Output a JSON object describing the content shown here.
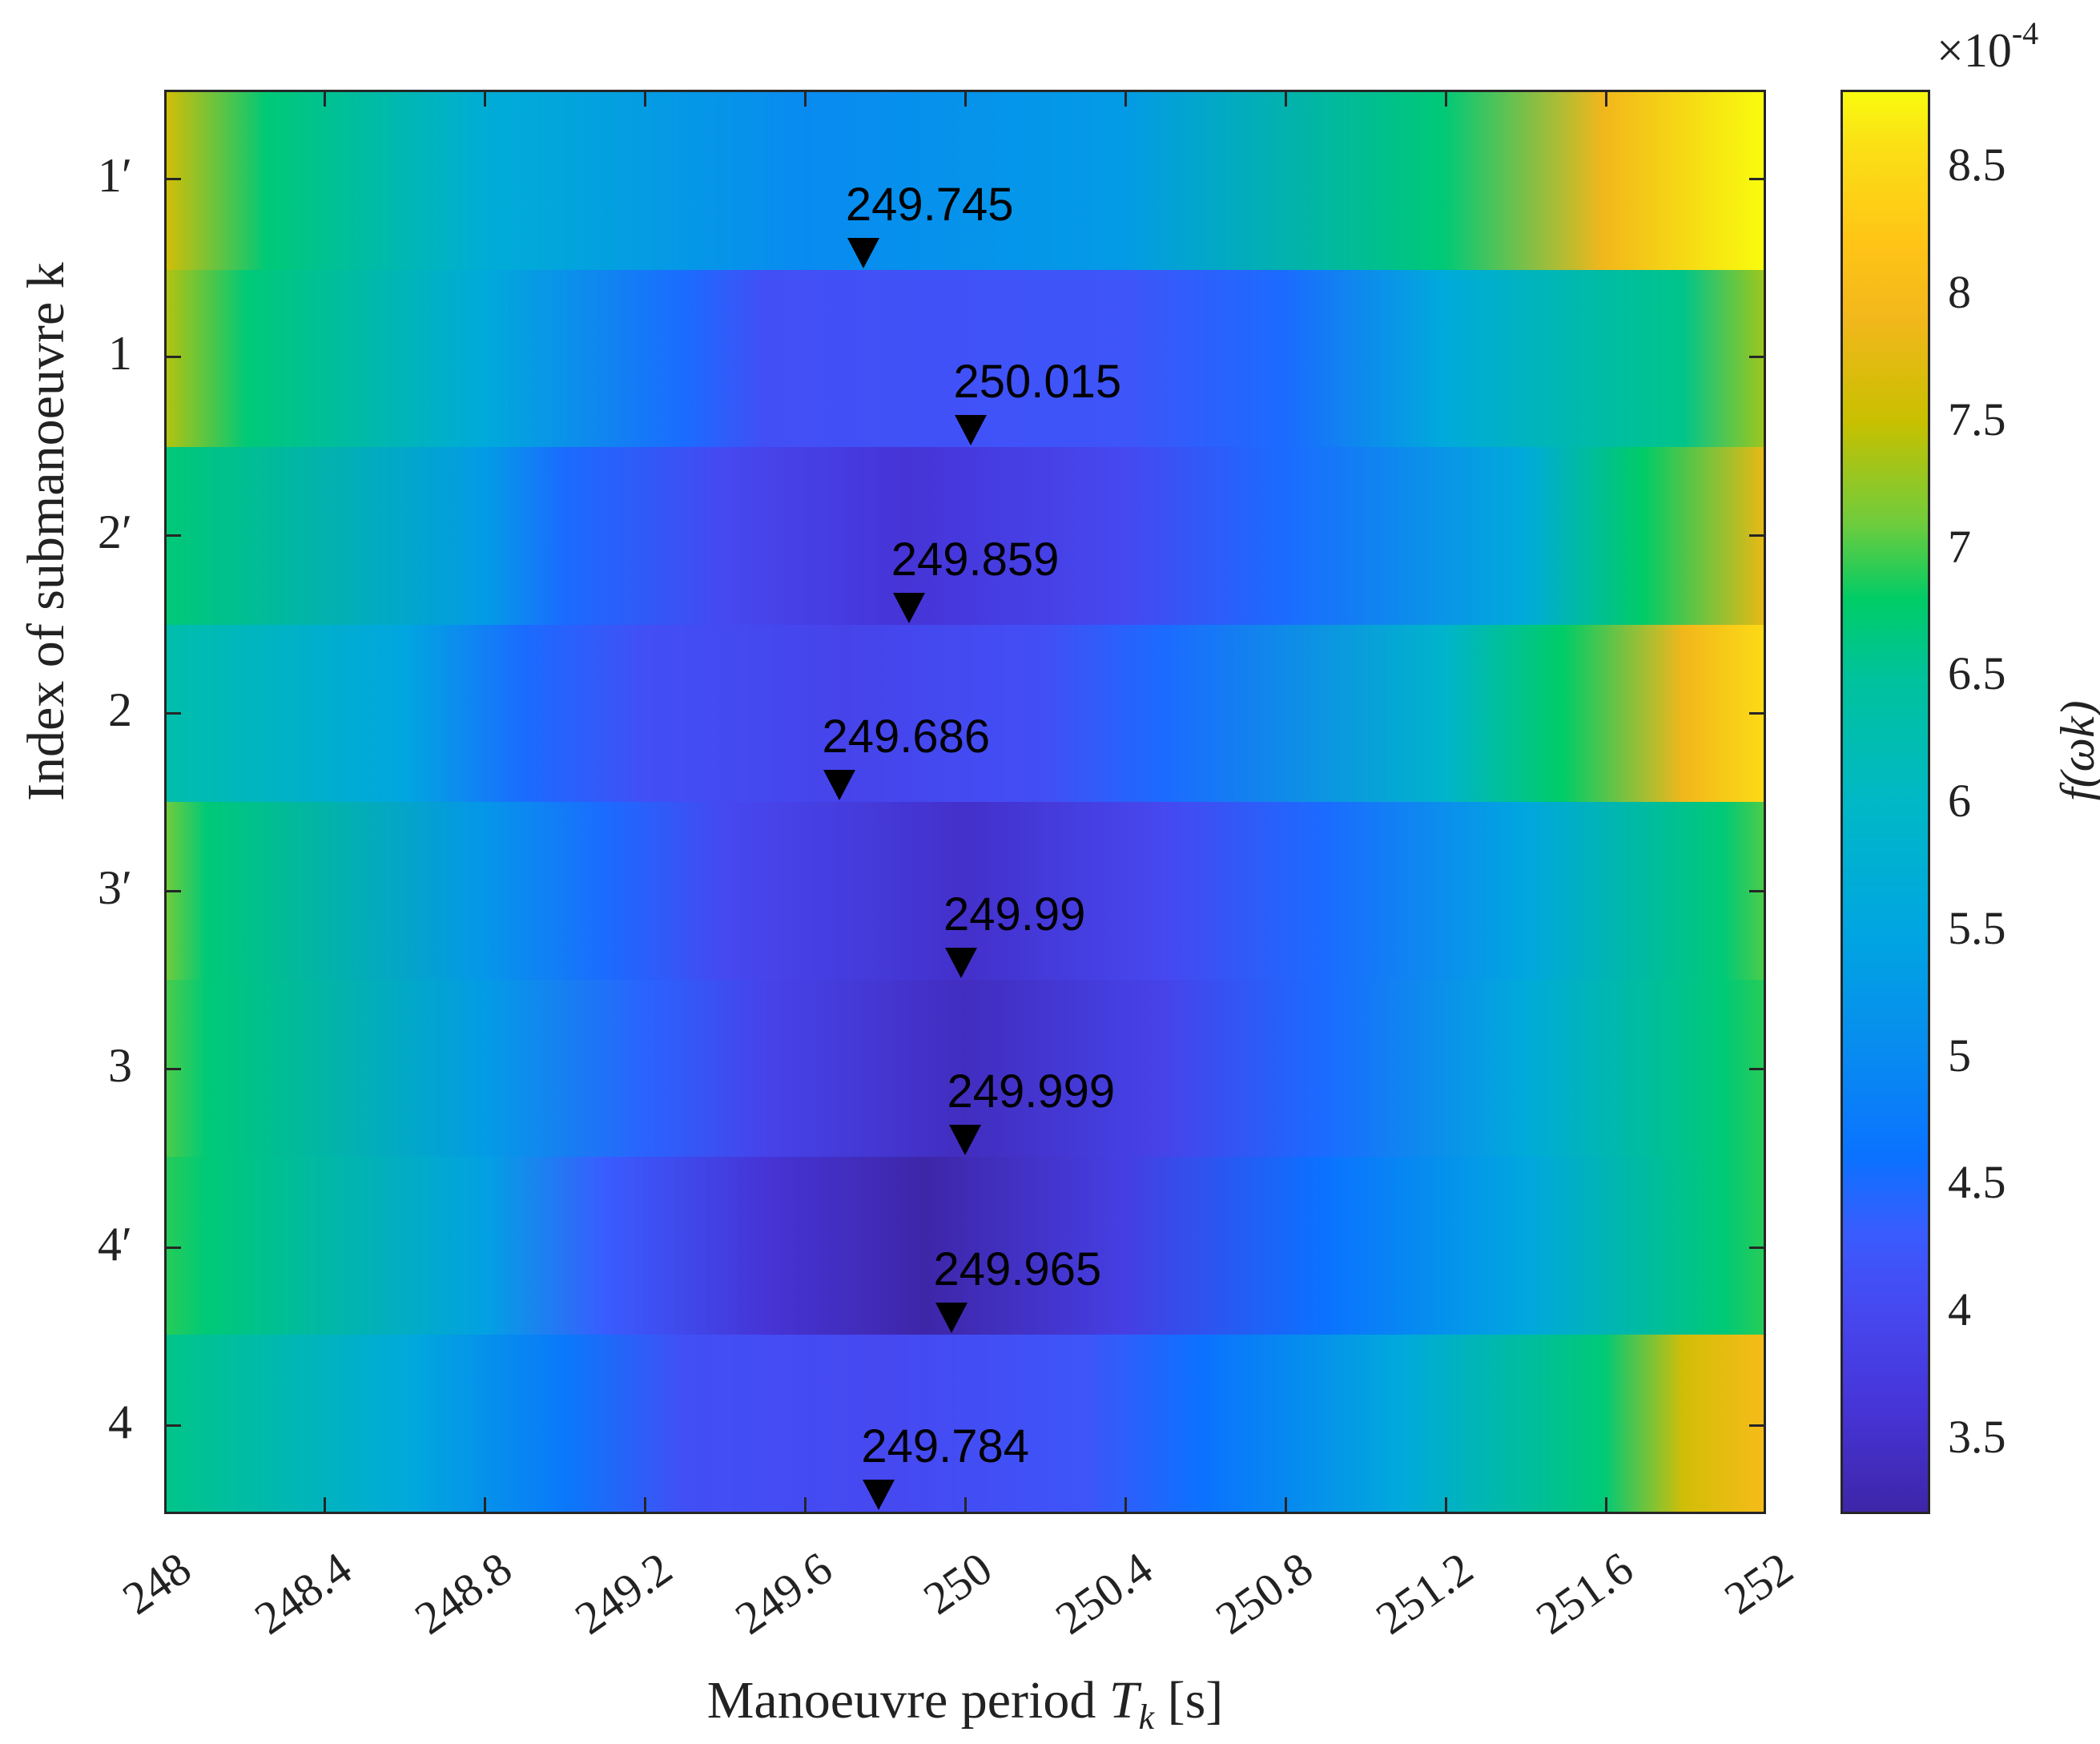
{
  "chart_data": {
    "type": "heatmap",
    "title": "",
    "xlabel": "Manoeuvre period T_k [s]",
    "ylabel": "Index of submanoeuvre k",
    "colorbar_label": "f(ω_k)",
    "colorbar_multiplier": "×10^-4",
    "colorbar_range": [
      3.2,
      8.8
    ],
    "colorbar_ticks": [
      3.5,
      4,
      4.5,
      5,
      5.5,
      6,
      6.5,
      7,
      7.5,
      8,
      8.5
    ],
    "colormap": "parula",
    "xlim": [
      248,
      252
    ],
    "x_ticks": [
      248,
      248.4,
      248.8,
      249.2,
      249.6,
      250,
      250.4,
      250.8,
      251.2,
      251.6,
      252
    ],
    "y_categories": [
      "1′",
      "1",
      "2′",
      "2",
      "3′",
      "3",
      "4′",
      "4"
    ],
    "grid": false,
    "rows": [
      {
        "k": "1′",
        "optimum_T": 249.745,
        "min_value": 4.9,
        "stops": [
          [
            248,
            7.6
          ],
          [
            248.25,
            6.7
          ],
          [
            248.8,
            5.7
          ],
          [
            249.6,
            5.0
          ],
          [
            250.4,
            5.3
          ],
          [
            251.2,
            6.7
          ],
          [
            251.6,
            7.9
          ],
          [
            252,
            8.8
          ]
        ]
      },
      {
        "k": "1",
        "optimum_T": 250.015,
        "min_value": 4.1,
        "stops": [
          [
            248,
            7.4
          ],
          [
            248.2,
            6.7
          ],
          [
            248.8,
            5.6
          ],
          [
            249.3,
            4.5
          ],
          [
            249.5,
            4.1
          ],
          [
            250.4,
            4.2
          ],
          [
            250.8,
            4.5
          ],
          [
            251.2,
            5.6
          ],
          [
            251.8,
            6.6
          ],
          [
            252,
            7.3
          ]
        ]
      },
      {
        "k": "2′",
        "optimum_T": 249.859,
        "min_value": 3.6,
        "stops": [
          [
            248,
            6.7
          ],
          [
            248.8,
            5.3
          ],
          [
            249.0,
            4.5
          ],
          [
            249.4,
            4.0
          ],
          [
            249.85,
            3.6
          ],
          [
            250.4,
            4.0
          ],
          [
            250.8,
            4.5
          ],
          [
            251.4,
            5.6
          ],
          [
            251.7,
            6.8
          ],
          [
            252,
            7.8
          ]
        ]
      },
      {
        "k": "2",
        "optimum_T": 249.686,
        "min_value": 3.9,
        "stops": [
          [
            248,
            6.3
          ],
          [
            248.6,
            5.5
          ],
          [
            248.9,
            4.5
          ],
          [
            249.2,
            4.1
          ],
          [
            249.7,
            3.9
          ],
          [
            250.2,
            4.1
          ],
          [
            250.5,
            4.5
          ],
          [
            251.2,
            5.9
          ],
          [
            251.5,
            6.8
          ],
          [
            251.8,
            7.9
          ],
          [
            252,
            8.5
          ]
        ]
      },
      {
        "k": "3′",
        "optimum_T": 249.99,
        "min_value": 3.5,
        "stops": [
          [
            248,
            7.1
          ],
          [
            248.1,
            6.7
          ],
          [
            248.8,
            5.2
          ],
          [
            249.1,
            4.5
          ],
          [
            249.4,
            4.0
          ],
          [
            250.0,
            3.5
          ],
          [
            250.5,
            4.0
          ],
          [
            250.9,
            4.5
          ],
          [
            251.4,
            5.5
          ],
          [
            251.9,
            6.7
          ],
          [
            252,
            7.0
          ]
        ]
      },
      {
        "k": "3",
        "optimum_T": 249.999,
        "min_value": 3.4,
        "stops": [
          [
            248,
            7.0
          ],
          [
            248.1,
            6.7
          ],
          [
            248.8,
            5.3
          ],
          [
            249.2,
            4.4
          ],
          [
            249.5,
            3.9
          ],
          [
            250.0,
            3.4
          ],
          [
            250.5,
            3.9
          ],
          [
            250.9,
            4.5
          ],
          [
            251.4,
            5.6
          ],
          [
            251.9,
            6.7
          ],
          [
            252,
            6.9
          ]
        ]
      },
      {
        "k": "4′",
        "optimum_T": 249.965,
        "min_value": 3.2,
        "stops": [
          [
            248,
            6.9
          ],
          [
            248.1,
            6.7
          ],
          [
            248.8,
            5.4
          ],
          [
            249.1,
            4.3
          ],
          [
            249.5,
            3.6
          ],
          [
            249.9,
            3.2
          ],
          [
            250.4,
            3.8
          ],
          [
            250.9,
            4.6
          ],
          [
            251.4,
            5.5
          ],
          [
            251.9,
            6.7
          ],
          [
            252,
            6.9
          ]
        ]
      },
      {
        "k": "4",
        "optimum_T": 249.784,
        "min_value": 4.0,
        "stops": [
          [
            248,
            6.6
          ],
          [
            248.6,
            5.6
          ],
          [
            249.0,
            4.7
          ],
          [
            249.3,
            4.1
          ],
          [
            249.8,
            4.0
          ],
          [
            250.3,
            4.2
          ],
          [
            250.6,
            4.6
          ],
          [
            251.1,
            5.6
          ],
          [
            251.6,
            6.7
          ],
          [
            251.8,
            7.6
          ],
          [
            252,
            8.0
          ]
        ]
      }
    ]
  },
  "labels": {
    "x_title_prefix": "Manoeuvre period ",
    "x_title_var": "T",
    "x_title_sub": "k",
    "x_title_suffix": " [s]",
    "y_title": "Index of submanoeuvre k",
    "cb_exp_base": "×10",
    "cb_exp_power": "-4",
    "cb_title": "f(ωk)"
  }
}
